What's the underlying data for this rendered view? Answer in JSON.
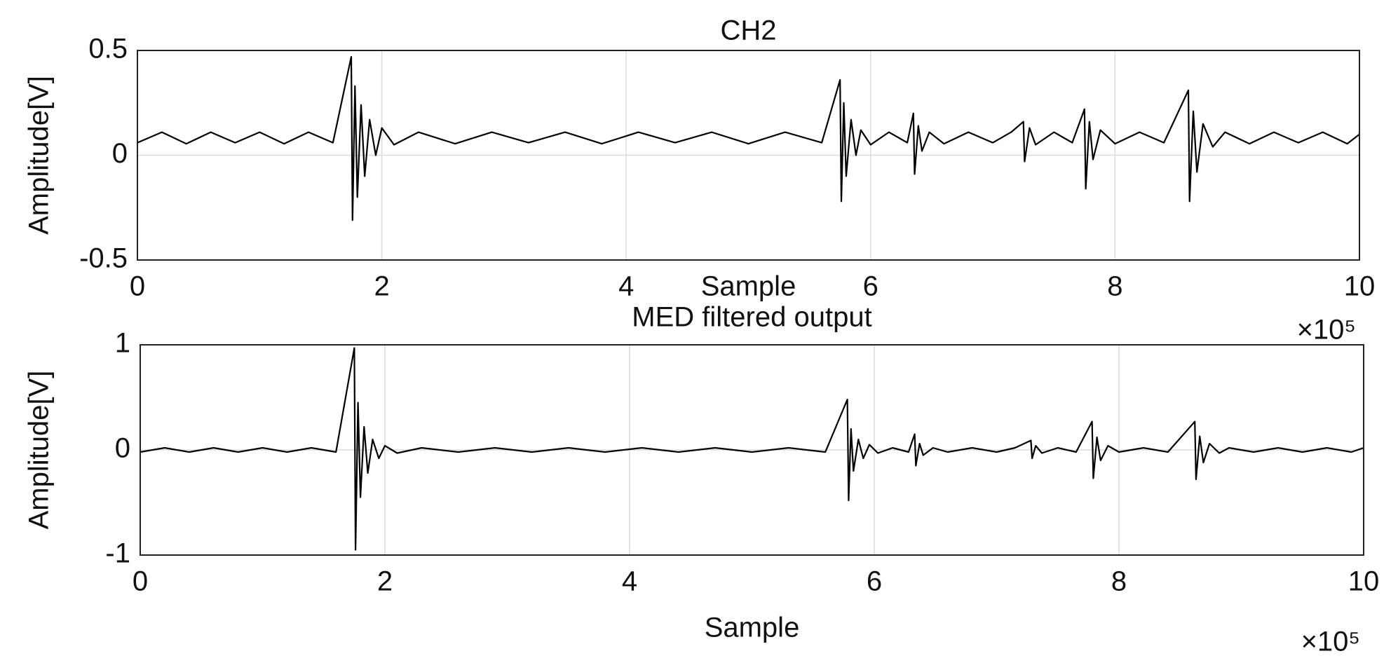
{
  "chart_data": [
    {
      "type": "line",
      "title": "CH2",
      "xlabel": "Sample",
      "ylabel": "Amplitude[V]",
      "x_exponent": "×10⁵",
      "x": [
        0,
        20000,
        40000,
        60000,
        80000,
        100000,
        120000,
        140000,
        160000,
        175000,
        176000,
        178000,
        180000,
        183000,
        186000,
        190000,
        195000,
        200000,
        210000,
        230000,
        260000,
        290000,
        320000,
        350000,
        380000,
        410000,
        440000,
        470000,
        500000,
        530000,
        560000,
        575000,
        576000,
        578000,
        580000,
        584000,
        588000,
        592000,
        600000,
        615000,
        630000,
        635000,
        636000,
        639000,
        642000,
        648000,
        660000,
        680000,
        700000,
        715000,
        725000,
        726000,
        730000,
        735000,
        750000,
        765000,
        775000,
        776000,
        779000,
        782000,
        788000,
        800000,
        820000,
        840000,
        860000,
        861000,
        864000,
        867000,
        872000,
        880000,
        890000,
        910000,
        930000,
        950000,
        970000,
        990000,
        1000000
      ],
      "series": [
        {
          "color": "#000000",
          "values": [
            0.06,
            0.11,
            0.055,
            0.11,
            0.06,
            0.11,
            0.055,
            0.11,
            0.06,
            0.47,
            -0.31,
            0.33,
            -0.2,
            0.24,
            -0.1,
            0.17,
            0.0,
            0.13,
            0.05,
            0.11,
            0.055,
            0.11,
            0.06,
            0.11,
            0.055,
            0.11,
            0.06,
            0.11,
            0.055,
            0.11,
            0.06,
            0.36,
            -0.22,
            0.25,
            -0.1,
            0.17,
            0.0,
            0.12,
            0.05,
            0.11,
            0.06,
            0.2,
            -0.09,
            0.14,
            0.02,
            0.11,
            0.055,
            0.11,
            0.06,
            0.11,
            0.16,
            -0.03,
            0.13,
            0.05,
            0.11,
            0.06,
            0.22,
            -0.16,
            0.16,
            -0.02,
            0.12,
            0.055,
            0.11,
            0.06,
            0.31,
            -0.22,
            0.21,
            -0.08,
            0.15,
            0.04,
            0.11,
            0.055,
            0.11,
            0.06,
            0.11,
            0.055,
            0.1
          ]
        }
      ],
      "xlim": [
        0,
        1000000
      ],
      "ylim": [
        -0.5,
        0.5
      ],
      "xticks": [
        0,
        {
          "value": 200000,
          "label": "2"
        },
        {
          "value": 400000,
          "label": "4"
        },
        {
          "value": 600000,
          "label": "6"
        },
        {
          "value": 800000,
          "label": "8"
        },
        {
          "value": 1000000,
          "label": "10"
        }
      ],
      "yticks": [
        -0.5,
        0,
        0.5
      ],
      "grid": true
    },
    {
      "type": "line",
      "title": "MED filtered output",
      "xlabel": "Sample",
      "ylabel": "Amplitude[V]",
      "x_exponent": "×10⁵",
      "x": [
        0,
        20000,
        40000,
        60000,
        80000,
        100000,
        120000,
        140000,
        160000,
        175000,
        176000,
        178000,
        180000,
        183000,
        186000,
        190000,
        195000,
        200000,
        210000,
        230000,
        260000,
        290000,
        320000,
        350000,
        380000,
        410000,
        440000,
        470000,
        500000,
        530000,
        560000,
        578000,
        579000,
        581000,
        583000,
        587000,
        591000,
        596000,
        603000,
        615000,
        628000,
        633000,
        634000,
        637000,
        640000,
        648000,
        660000,
        680000,
        700000,
        715000,
        728000,
        729000,
        732000,
        737000,
        750000,
        765000,
        778000,
        779000,
        782000,
        785000,
        791000,
        800000,
        820000,
        840000,
        862000,
        863000,
        866000,
        869000,
        874000,
        882000,
        890000,
        910000,
        930000,
        950000,
        970000,
        990000,
        1000000
      ],
      "series": [
        {
          "color": "#000000",
          "values": [
            -0.02,
            0.02,
            -0.02,
            0.02,
            -0.02,
            0.02,
            -0.02,
            0.02,
            -0.02,
            0.97,
            -0.95,
            0.45,
            -0.45,
            0.22,
            -0.22,
            0.1,
            -0.08,
            0.04,
            -0.03,
            0.02,
            -0.02,
            0.02,
            -0.02,
            0.02,
            -0.02,
            0.02,
            -0.02,
            0.02,
            -0.02,
            0.02,
            -0.02,
            0.48,
            -0.48,
            0.2,
            -0.2,
            0.1,
            -0.08,
            0.05,
            -0.03,
            0.02,
            -0.02,
            0.15,
            -0.15,
            0.06,
            -0.05,
            0.02,
            -0.02,
            0.02,
            -0.02,
            0.02,
            0.09,
            -0.08,
            0.04,
            -0.03,
            0.02,
            -0.02,
            0.27,
            -0.27,
            0.12,
            -0.1,
            0.04,
            -0.02,
            0.02,
            -0.02,
            0.27,
            -0.28,
            0.13,
            -0.12,
            0.06,
            -0.03,
            0.02,
            -0.02,
            0.02,
            -0.02,
            0.02,
            -0.02,
            0.02
          ]
        }
      ],
      "xlim": [
        0,
        1000000
      ],
      "ylim": [
        -1,
        1
      ],
      "xticks": [
        0,
        {
          "value": 200000,
          "label": "2"
        },
        {
          "value": 400000,
          "label": "4"
        },
        {
          "value": 600000,
          "label": "6"
        },
        {
          "value": 800000,
          "label": "8"
        },
        {
          "value": 1000000,
          "label": "10"
        }
      ],
      "yticks": [
        -1,
        0,
        1
      ],
      "grid": true
    }
  ]
}
